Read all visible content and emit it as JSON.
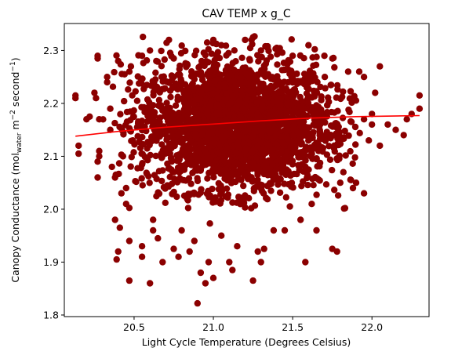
{
  "chart_data": {
    "type": "scatter",
    "title": "CAV TEMP x g_C",
    "xlabel": "Light Cycle Temperature (Degrees Celsius)",
    "ylabel_parts": {
      "pre": "Canopy Conductance (mol",
      "sub": "water",
      "mid": " m",
      "sup1": "−2",
      "mid2": " second",
      "sup2": "−1",
      "post": ")"
    },
    "xlim": [
      20.06,
      22.36
    ],
    "ylim": [
      1.797,
      2.351
    ],
    "xticks": [
      {
        "value": 20.5,
        "label": "20.5"
      },
      {
        "value": 21.0,
        "label": "21.0"
      },
      {
        "value": 21.5,
        "label": "21.5"
      },
      {
        "value": 22.0,
        "label": "22.0"
      }
    ],
    "yticks": [
      {
        "value": 1.8,
        "label": "1.8"
      },
      {
        "value": 1.9,
        "label": "1.9"
      },
      {
        "value": 2.0,
        "label": "2.0"
      },
      {
        "value": 2.1,
        "label": "2.1"
      },
      {
        "value": 2.2,
        "label": "2.2"
      },
      {
        "value": 2.3,
        "label": "2.3"
      }
    ],
    "grid": false,
    "series": [
      {
        "kind": "scatter",
        "color": "#8b0000",
        "points": [
          [
            20.13,
            2.21
          ],
          [
            20.13,
            2.215
          ],
          [
            20.15,
            2.12
          ],
          [
            20.15,
            2.105
          ],
          [
            20.27,
            2.285
          ],
          [
            20.27,
            2.29
          ],
          [
            20.25,
            2.22
          ],
          [
            20.26,
            2.21
          ],
          [
            20.28,
            2.11
          ],
          [
            20.28,
            2.1
          ],
          [
            20.27,
            2.09
          ],
          [
            20.27,
            2.06
          ],
          [
            20.33,
            2.24
          ],
          [
            20.33,
            2.25
          ],
          [
            20.35,
            2.15
          ],
          [
            20.38,
            1.98
          ],
          [
            20.39,
            1.905
          ],
          [
            20.4,
            1.92
          ],
          [
            20.41,
            1.965
          ],
          [
            20.45,
            2.01
          ],
          [
            20.45,
            2.04
          ],
          [
            20.47,
            1.865
          ],
          [
            20.47,
            1.94
          ],
          [
            20.44,
            2.255
          ],
          [
            20.48,
            2.27
          ],
          [
            20.55,
            2.29
          ],
          [
            20.55,
            1.91
          ],
          [
            20.55,
            1.93
          ],
          [
            20.6,
            2.3
          ],
          [
            20.6,
            1.86
          ],
          [
            20.62,
            1.96
          ],
          [
            20.62,
            1.98
          ],
          [
            20.64,
            2.28
          ],
          [
            20.65,
            1.945
          ],
          [
            20.68,
            1.9
          ],
          [
            20.72,
            2.32
          ],
          [
            20.75,
            1.925
          ],
          [
            20.75,
            2.285
          ],
          [
            20.78,
            1.91
          ],
          [
            20.8,
            1.96
          ],
          [
            20.85,
            1.92
          ],
          [
            20.88,
            1.94
          ],
          [
            20.9,
            1.822
          ],
          [
            20.92,
            1.88
          ],
          [
            20.95,
            1.86
          ],
          [
            20.97,
            1.9
          ],
          [
            21.0,
            2.32
          ],
          [
            21.0,
            1.87
          ],
          [
            21.05,
            2.31
          ],
          [
            21.05,
            1.95
          ],
          [
            21.1,
            1.9
          ],
          [
            21.12,
            1.885
          ],
          [
            21.15,
            1.93
          ],
          [
            21.2,
            2.32
          ],
          [
            21.25,
            2.325
          ],
          [
            21.25,
            1.865
          ],
          [
            21.28,
            1.92
          ],
          [
            21.3,
            2.3
          ],
          [
            21.3,
            1.9
          ],
          [
            21.32,
            1.925
          ],
          [
            21.38,
            1.96
          ],
          [
            21.4,
            2.305
          ],
          [
            21.45,
            1.96
          ],
          [
            21.5,
            2.29
          ],
          [
            21.55,
            1.98
          ],
          [
            21.58,
            1.9
          ],
          [
            21.6,
            2.31
          ],
          [
            21.62,
            2.01
          ],
          [
            21.65,
            1.96
          ],
          [
            21.7,
            2.29
          ],
          [
            21.75,
            1.925
          ],
          [
            21.78,
            1.92
          ],
          [
            21.8,
            2.05
          ],
          [
            21.82,
            2.07
          ],
          [
            21.85,
            2.26
          ],
          [
            21.88,
            2.04
          ],
          [
            21.9,
            2.05
          ],
          [
            21.92,
            2.26
          ],
          [
            21.95,
            2.25
          ],
          [
            21.95,
            2.03
          ],
          [
            21.95,
            2.17
          ],
          [
            21.98,
            2.13
          ],
          [
            22.0,
            2.18
          ],
          [
            22.0,
            2.16
          ],
          [
            22.02,
            2.22
          ],
          [
            22.05,
            2.27
          ],
          [
            22.05,
            2.12
          ],
          [
            22.1,
            2.16
          ],
          [
            22.15,
            2.15
          ],
          [
            22.2,
            2.14
          ],
          [
            22.22,
            2.17
          ],
          [
            22.25,
            2.18
          ],
          [
            22.3,
            2.215
          ],
          [
            22.3,
            2.19
          ],
          [
            20.22,
            2.175
          ],
          [
            20.2,
            2.17
          ],
          [
            20.28,
            2.17
          ],
          [
            20.35,
            2.19
          ],
          [
            20.36,
            2.08
          ],
          [
            20.38,
            2.06
          ],
          [
            20.4,
            2.28
          ],
          [
            20.42,
            2.03
          ],
          [
            20.43,
            2.1
          ],
          [
            20.47,
            2.26
          ]
        ]
      },
      {
        "kind": "line",
        "color": "#ff0000",
        "points": [
          [
            20.13,
            2.138
          ],
          [
            20.4,
            2.147
          ],
          [
            20.7,
            2.155
          ],
          [
            21.0,
            2.161
          ],
          [
            21.3,
            2.167
          ],
          [
            21.6,
            2.172
          ],
          [
            21.9,
            2.175
          ],
          [
            22.3,
            2.177
          ]
        ]
      }
    ],
    "cloud": {
      "color": "#8b0000",
      "center_x": 21.15,
      "center_y": 2.16,
      "sd_x": 0.3,
      "sd_y": 0.062,
      "count": 2600
    }
  }
}
